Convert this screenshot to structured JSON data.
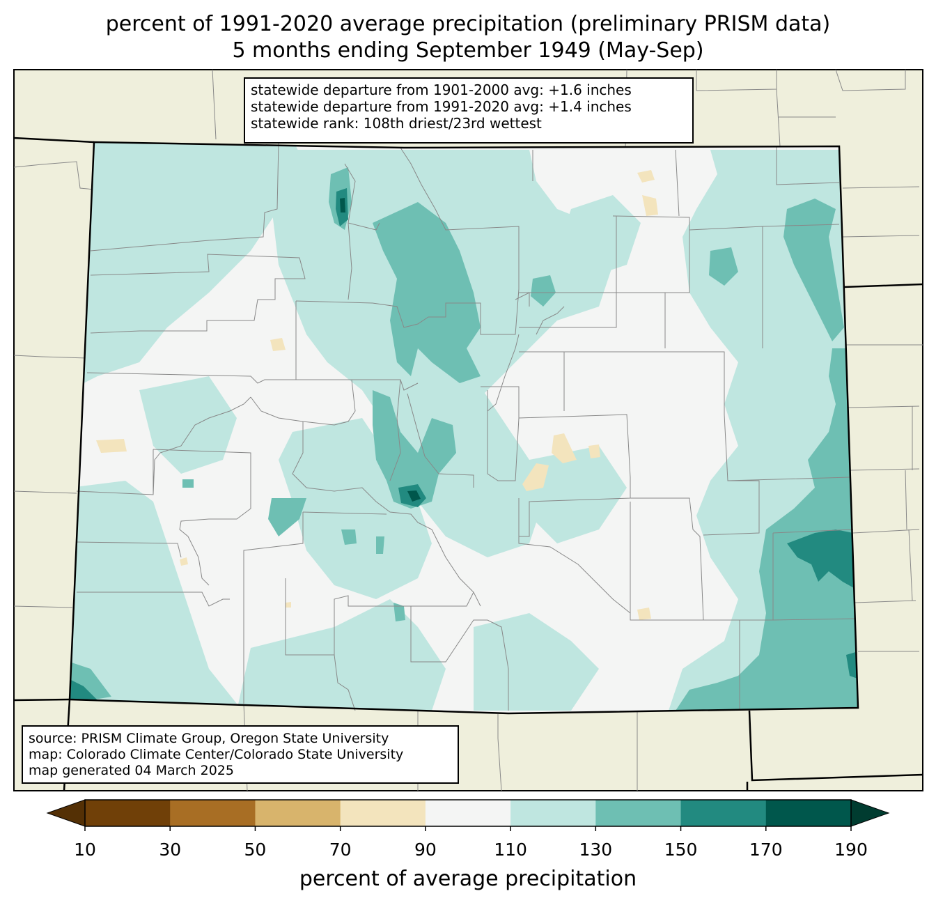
{
  "title": {
    "line1": "percent of 1991-2020 average precipitation (preliminary PRISM data)",
    "line2": "5 months ending September 1949 (May-Sep)"
  },
  "stats": [
    "statewide departure from 1901-2000 avg: +1.6 inches",
    "statewide departure from 1991-2020 avg: +1.4 inches",
    "statewide rank: 108th driest/23rd wettest"
  ],
  "credits": [
    "source: PRISM Climate Group, Oregon State University",
    "map: Colorado Climate Center/Colorado State University",
    "map generated 04 March 2025"
  ],
  "colorbar": {
    "label": "percent of average precipitation",
    "ticks": [
      "10",
      "30",
      "50",
      "70",
      "90",
      "110",
      "130",
      "150",
      "170",
      "190"
    ],
    "under_color": "#543005",
    "over_color": "#003c30",
    "bin_colors": [
      "#704008",
      "#a86e24",
      "#d8b46c",
      "#f3e4bd",
      "#f4f5f4",
      "#bfe6e0",
      "#6ebfb3",
      "#228a80",
      "#00574c"
    ]
  },
  "legend_colors": {
    "background_land": "#efefdc",
    "state_fill_base": "#f4f5f4",
    "county_lines": "#888888",
    "state_border": "#000000"
  }
}
